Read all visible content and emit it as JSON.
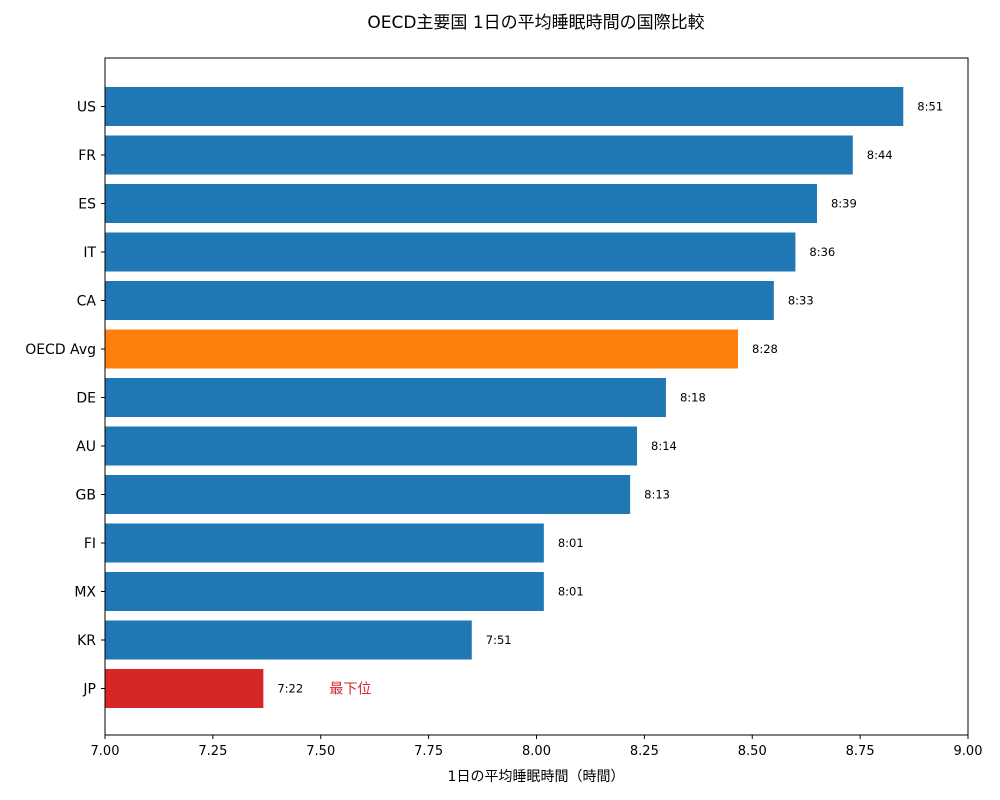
{
  "chart_data": {
    "type": "bar",
    "orientation": "horizontal",
    "title": "OECD主要国 1日の平均睡眠時間の国際比較",
    "xlabel": "1日の平均睡眠時間（時間）",
    "ylabel": "",
    "xlim": [
      7.0,
      9.0
    ],
    "xticks": [
      "7.00",
      "7.25",
      "7.50",
      "7.75",
      "8.00",
      "8.25",
      "8.50",
      "8.75",
      "9.00"
    ],
    "xtick_values": [
      7.0,
      7.25,
      7.5,
      7.75,
      8.0,
      8.25,
      8.5,
      8.75,
      9.0
    ],
    "grid": false,
    "categories": [
      "US",
      "FR",
      "ES",
      "IT",
      "CA",
      "OECD Avg",
      "DE",
      "AU",
      "GB",
      "FI",
      "MX",
      "KR",
      "JP"
    ],
    "values": [
      8.85,
      8.733,
      8.65,
      8.6,
      8.55,
      8.467,
      8.3,
      8.233,
      8.217,
      8.017,
      8.017,
      7.85,
      7.367
    ],
    "value_labels": [
      "8:51",
      "8:44",
      "8:39",
      "8:36",
      "8:33",
      "8:28",
      "8:18",
      "8:14",
      "8:13",
      "8:01",
      "8:01",
      "7:51",
      "7:22"
    ],
    "colors": [
      "#1f77b4",
      "#1f77b4",
      "#1f77b4",
      "#1f77b4",
      "#1f77b4",
      "#ff7f0e",
      "#1f77b4",
      "#1f77b4",
      "#1f77b4",
      "#1f77b4",
      "#1f77b4",
      "#1f77b4",
      "#d62728"
    ],
    "annotations": [
      {
        "category": "JP",
        "text": "最下位",
        "color": "#d62728"
      }
    ]
  }
}
